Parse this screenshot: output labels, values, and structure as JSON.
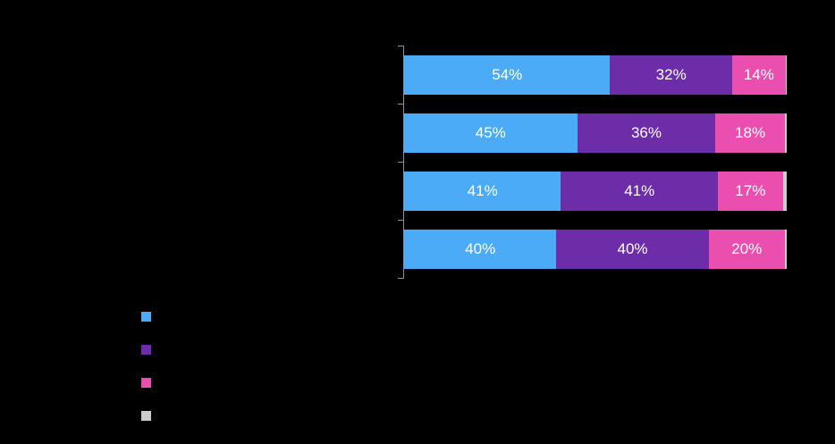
{
  "chart_data": {
    "type": "bar",
    "orientation": "horizontal",
    "stacked": true,
    "percent": true,
    "title": "",
    "xlabel": "",
    "ylabel": "",
    "xlim": [
      0,
      100
    ],
    "grid": false,
    "legend_position": "bottom-left",
    "categories": [
      "",
      "",
      "",
      ""
    ],
    "series": [
      {
        "name": "",
        "color": "#4BABF7",
        "values": [
          54,
          45,
          41,
          40
        ],
        "labels": [
          "54%",
          "45%",
          "41%",
          "40%"
        ]
      },
      {
        "name": "",
        "color": "#6D2DA8",
        "values": [
          32,
          36,
          41,
          40
        ],
        "labels": [
          "32%",
          "36%",
          "41%",
          "40%"
        ]
      },
      {
        "name": "",
        "color": "#EA4FAF",
        "values": [
          14,
          18,
          17,
          20
        ],
        "labels": [
          "14%",
          "18%",
          "17%",
          "20%"
        ]
      },
      {
        "name": "",
        "color": "#CCCCCC",
        "values": [
          0.3,
          0.5,
          1,
          0.5
        ],
        "labels": [
          "",
          "",
          "",
          ""
        ]
      }
    ]
  },
  "colors": {
    "background": "#000000",
    "axis": "#8a8f9c",
    "label_text": "#ffffff"
  }
}
